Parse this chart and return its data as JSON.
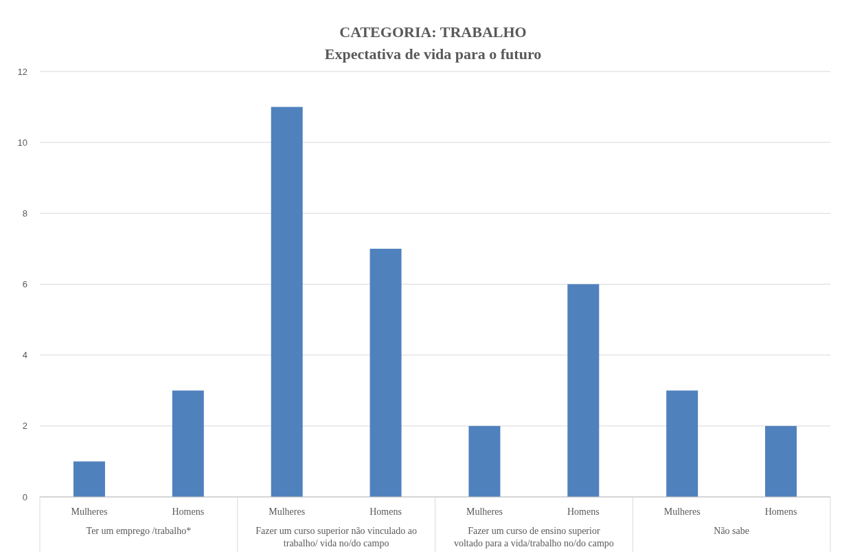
{
  "chart_data": {
    "type": "bar",
    "title": "CATEGORIA: TRABALHO",
    "subtitle": "Expectativa de vida para o futuro",
    "categories": [
      "Ter um emprego /trabalho*",
      "Fazer um curso superior não vinculado ao trabalho/ vida no/do campo",
      "Fazer um curso de ensino superior voltado para a vida/trabalho no/do campo",
      "Não sabe"
    ],
    "series": [
      {
        "name": "Mulheres",
        "color": "#4f81bd",
        "values": [
          1,
          11,
          2,
          3
        ]
      },
      {
        "name": "Homens",
        "color": "#4f81bd",
        "values": [
          3,
          7,
          6,
          2
        ]
      }
    ],
    "ylim": [
      0,
      12
    ],
    "yticks": [
      0,
      2,
      4,
      6,
      8,
      10,
      12
    ],
    "grid": "y"
  }
}
